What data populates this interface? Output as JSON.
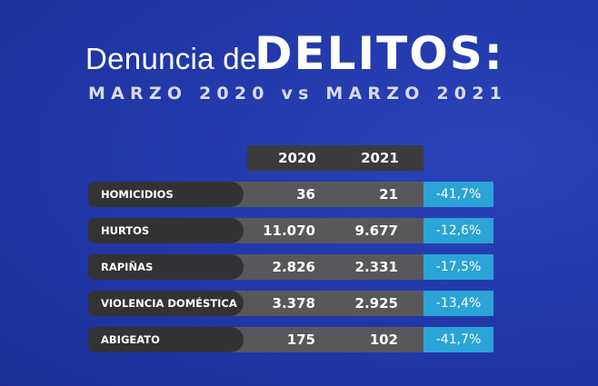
{
  "header": {
    "title_light": "Denuncia de",
    "title_bold": "DELITOS:",
    "subtitle": "MARZO 2020 vs MARZO 2021"
  },
  "table": {
    "columns": [
      "2020",
      "2021"
    ],
    "rows": [
      [
        "HOMICIDIOS",
        "36",
        "21",
        "-41,7%"
      ],
      [
        "HURTOS",
        "11.070",
        "9.677",
        "-12,6%"
      ],
      [
        "RAPIÑAS",
        "2.826",
        "2.331",
        "-17,5%"
      ],
      [
        "VIOLENCIA DOMÉSTICA",
        "3.378",
        "2.925",
        "-13,4%"
      ],
      [
        "ABIGEATO",
        "175",
        "102",
        "-41,7%"
      ]
    ]
  }
}
